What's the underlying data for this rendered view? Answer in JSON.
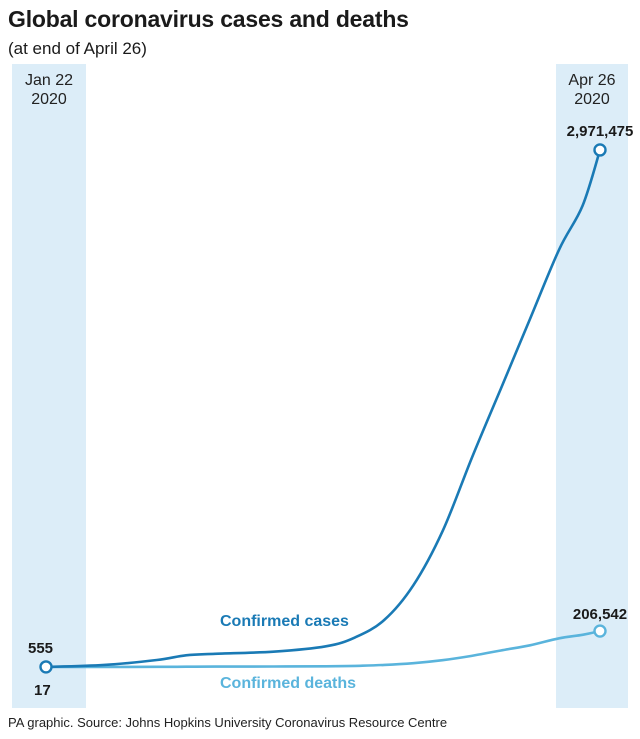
{
  "chart_data": {
    "type": "line",
    "title": "Global coronavirus cases and deaths",
    "subtitle": "(at end of April 26)",
    "x_start": {
      "line1": "Jan 22",
      "line2": "2020"
    },
    "x_end": {
      "line1": "Apr 26",
      "line2": "2020"
    },
    "x": [
      "2020-01-22",
      "2020-02-01",
      "2020-02-10",
      "2020-02-15",
      "2020-02-20",
      "2020-03-01",
      "2020-03-10",
      "2020-03-15",
      "2020-03-20",
      "2020-03-25",
      "2020-03-30",
      "2020-04-04",
      "2020-04-09",
      "2020-04-14",
      "2020-04-19",
      "2020-04-23",
      "2020-04-26"
    ],
    "ylim": [
      0,
      3000000
    ],
    "grid": false,
    "series": [
      {
        "name": "Confirmed cases",
        "color": "#1a7ab5",
        "start_label": "555",
        "end_label": "2,971,475",
        "values": [
          555,
          12000,
          40000,
          67000,
          76000,
          88000,
          119000,
          170000,
          270000,
          470000,
          780000,
          1200000,
          1600000,
          2000000,
          2400000,
          2650000,
          2971475
        ]
      },
      {
        "name": "Confirmed deaths",
        "color": "#5ab4dc",
        "start_label": "17",
        "end_label": "206,542",
        "values": [
          17,
          260,
          1000,
          1500,
          2200,
          3000,
          4000,
          6500,
          12000,
          22000,
          39000,
          64000,
          95000,
          125000,
          165000,
          185000,
          206542
        ]
      }
    ]
  },
  "footer": "PA graphic. Source: Johns Hopkins University Coronavirus Resource Centre"
}
